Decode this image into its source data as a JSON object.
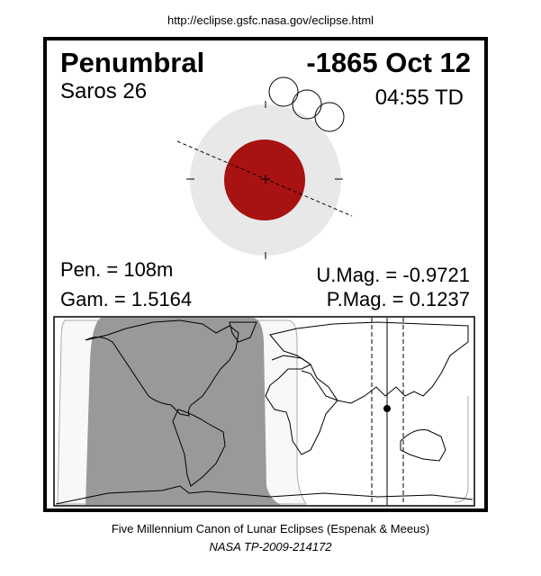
{
  "source_url": "http://eclipse.gsfc.nasa.gov/eclipse.html",
  "eclipse": {
    "type": "Penumbral",
    "date": "-1865 Oct 12",
    "saros": "Saros  26",
    "time": "04:55 TD",
    "pen_duration": "Pen. = 108m",
    "gamma": "Gam. = 1.5164",
    "umbral_magnitude": "U.Mag. = -0.9721",
    "penumbral_magnitude": "P.Mag. = 0.1237"
  },
  "colors": {
    "umbra": "#a81212",
    "penumbra": "#e8e8e8",
    "map_shadow": "#999999",
    "map_penumbral_zone": "#f8f8f8"
  },
  "footer": {
    "line1": "Five Millennium Canon of Lunar Eclipses (Espenak & Meeus)",
    "line2": "NASA TP-2009-214172"
  }
}
